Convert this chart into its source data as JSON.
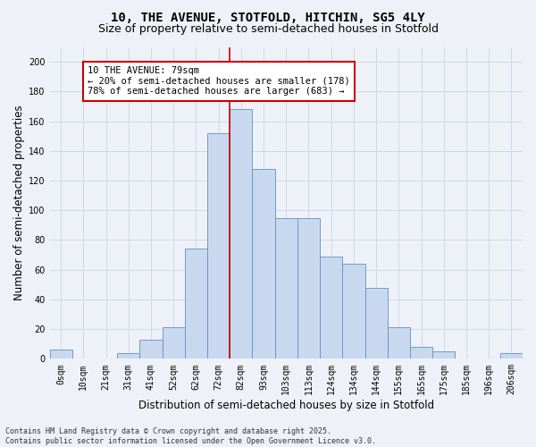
{
  "title_line1": "10, THE AVENUE, STOTFOLD, HITCHIN, SG5 4LY",
  "title_line2": "Size of property relative to semi-detached houses in Stotfold",
  "xlabel": "Distribution of semi-detached houses by size in Stotfold",
  "ylabel": "Number of semi-detached properties",
  "bin_labels": [
    "0sqm",
    "10sqm",
    "21sqm",
    "31sqm",
    "41sqm",
    "52sqm",
    "62sqm",
    "72sqm",
    "82sqm",
    "93sqm",
    "103sqm",
    "113sqm",
    "124sqm",
    "134sqm",
    "144sqm",
    "155sqm",
    "165sqm",
    "175sqm",
    "185sqm",
    "196sqm",
    "206sqm"
  ],
  "bar_heights": [
    6,
    0,
    0,
    4,
    13,
    21,
    74,
    152,
    168,
    128,
    95,
    95,
    69,
    64,
    48,
    21,
    8,
    5,
    0,
    0,
    4
  ],
  "bar_color": "#c8d9ef",
  "bar_edge_color": "#6090c0",
  "grid_color": "#d0d8e8",
  "background_color": "#eef2f8",
  "vline_x": 7.5,
  "vline_color": "#cc0000",
  "annotation_text": "10 THE AVENUE: 79sqm\n← 20% of semi-detached houses are smaller (178)\n78% of semi-detached houses are larger (683) →",
  "annotation_box_color": "#ffffff",
  "annotation_box_edge": "#cc0000",
  "ylim": [
    0,
    210
  ],
  "yticks": [
    0,
    20,
    40,
    60,
    80,
    100,
    120,
    140,
    160,
    180,
    200
  ],
  "footnote": "Contains HM Land Registry data © Crown copyright and database right 2025.\nContains public sector information licensed under the Open Government Licence v3.0.",
  "title_fontsize": 10,
  "subtitle_fontsize": 9,
  "axis_label_fontsize": 8.5,
  "tick_fontsize": 7,
  "annotation_fontsize": 7.5,
  "footnote_fontsize": 6
}
